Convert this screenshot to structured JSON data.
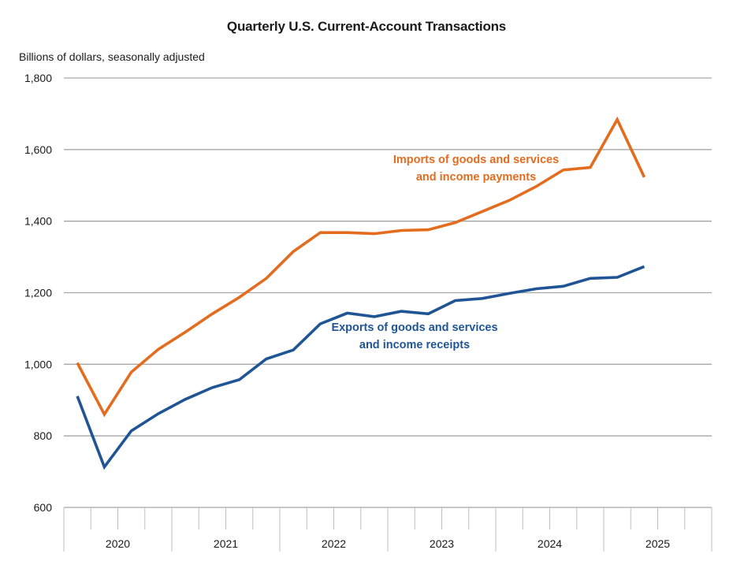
{
  "chart_data": {
    "type": "line",
    "title": "Quarterly U.S. Current-Account Transactions",
    "ylabel": "Billions of dollars, seasonally adjusted",
    "xlabel": "",
    "ylim": [
      600,
      1800
    ],
    "yticks": [
      600,
      800,
      1000,
      1200,
      1400,
      1600,
      1800
    ],
    "ytick_labels": [
      "600",
      "800",
      "1,000",
      "1,200",
      "1,400",
      "1,600",
      "1,800"
    ],
    "grid": true,
    "x_groups": [
      "2020",
      "2021",
      "2022",
      "2023",
      "2024",
      "2025"
    ],
    "quarters_per_group": 4,
    "x": [
      "2020Q1",
      "2020Q2",
      "2020Q3",
      "2020Q4",
      "2021Q1",
      "2021Q2",
      "2021Q3",
      "2021Q4",
      "2022Q1",
      "2022Q2",
      "2022Q3",
      "2022Q4",
      "2023Q1",
      "2023Q2",
      "2023Q3",
      "2023Q4",
      "2024Q1",
      "2024Q2",
      "2024Q3",
      "2024Q4",
      "2025Q1",
      "2025Q2"
    ],
    "series": [
      {
        "name": "Imports of goods and services and income payments",
        "label_lines": [
          "Imports of goods and services",
          "and income payments"
        ],
        "color": "#E36C1F",
        "values": [
          1004,
          860,
          978,
          1042,
          1090,
          1141,
          1187,
          1240,
          1315,
          1368,
          1368,
          1365,
          1374,
          1376,
          1396,
          1427,
          1458,
          1497,
          1543,
          1550,
          1684,
          1523
        ]
      },
      {
        "name": "Exports of goods and services and income receipts",
        "label_lines": [
          "Exports of goods and services",
          "and income receipts"
        ],
        "color": "#1F5595",
        "values": [
          911,
          713,
          814,
          862,
          902,
          935,
          957,
          1015,
          1040,
          1113,
          1143,
          1133,
          1148,
          1141,
          1178,
          1184,
          1198,
          1211,
          1218,
          1240,
          1243,
          1273
        ]
      }
    ]
  }
}
